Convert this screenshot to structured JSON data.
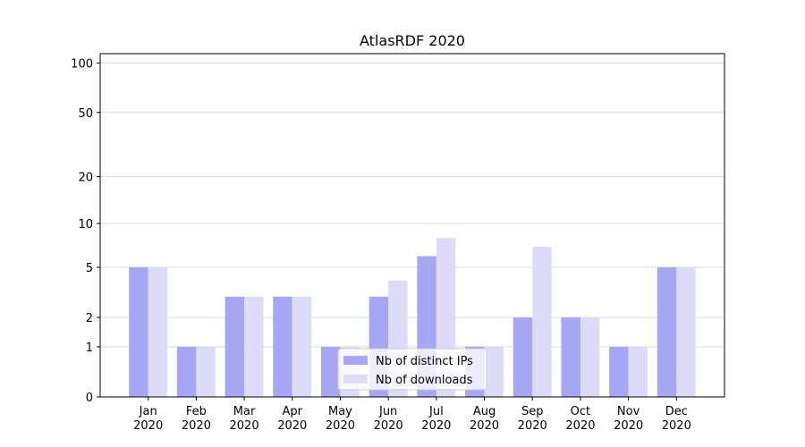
{
  "chart_data": {
    "type": "bar",
    "title": "AtlasRDF 2020",
    "categories": [
      "Jan\n2020",
      "Feb\n2020",
      "Mar\n2020",
      "Apr\n2020",
      "May\n2020",
      "Jun\n2020",
      "Jul\n2020",
      "Aug\n2020",
      "Sep\n2020",
      "Oct\n2020",
      "Nov\n2020",
      "Dec\n2020"
    ],
    "series": [
      {
        "name": "Nb of distinct IPs",
        "color": "#a6a6f5",
        "values": [
          5,
          1,
          3,
          3,
          1,
          3,
          6,
          1,
          2,
          2,
          1,
          5
        ]
      },
      {
        "name": "Nb of downloads",
        "color": "#dcdcf8",
        "values": [
          5,
          1,
          3,
          3,
          1,
          4,
          8,
          1,
          7,
          2,
          1,
          5
        ]
      }
    ],
    "yscale": "log1p",
    "ylim": [
      0,
      114
    ],
    "yticks": [
      0,
      1,
      2,
      5,
      10,
      20,
      50,
      100
    ],
    "grid": true,
    "legend": "lower center"
  }
}
